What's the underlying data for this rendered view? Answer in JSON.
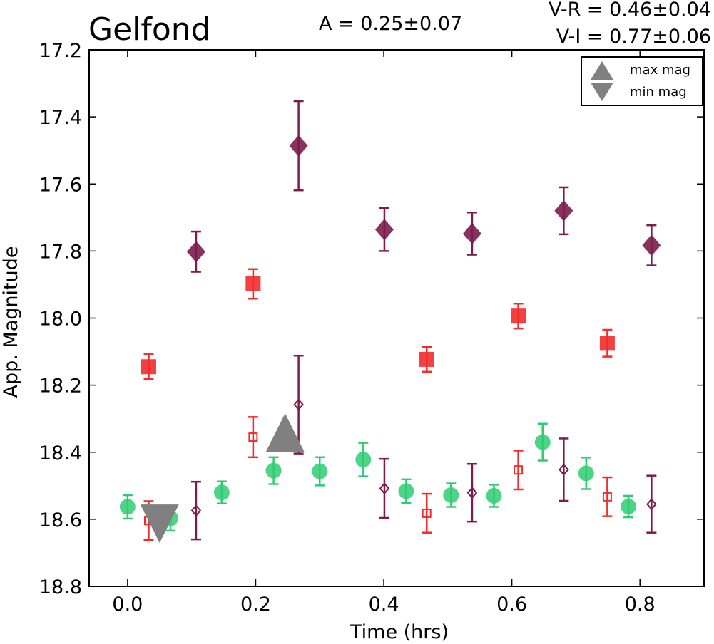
{
  "chart_data": {
    "type": "scatter",
    "title": "Gelfond",
    "annotations": {
      "amplitude": "A  = 0.25±0.07",
      "v_r": "V-R = 0.46±0.04",
      "v_i": "V-I  = 0.77±0.06"
    },
    "xlabel": "Time (hrs)",
    "ylabel": "App. Magnitude",
    "xlim": [
      -0.06,
      0.9
    ],
    "ylim": [
      18.8,
      17.2
    ],
    "y_inverted": true,
    "xticks": [
      "0.0",
      "0.2",
      "0.4",
      "0.6",
      "0.8"
    ],
    "xtick_values": [
      0.0,
      0.2,
      0.4,
      0.6,
      0.8
    ],
    "yticks": [
      "17.2",
      "17.4",
      "17.6",
      "17.8",
      "18.0",
      "18.2",
      "18.4",
      "18.6",
      "18.8"
    ],
    "ytick_values": [
      17.2,
      17.4,
      17.6,
      17.8,
      18.0,
      18.2,
      18.4,
      18.6,
      18.8
    ],
    "legend_position": "top-right",
    "legend": [
      {
        "label": "max mag",
        "marker": "triangle-up"
      },
      {
        "label": "min mag",
        "marker": "triangle-down"
      }
    ],
    "colors": {
      "green": "#2ecc71",
      "red": "#f22b2b",
      "purple": "#7b1c4f",
      "gray": "#808080"
    },
    "series": [
      {
        "marker": "circle",
        "filled": true,
        "color": "#2ecc71",
        "x": [
          0.0,
          0.067,
          0.147,
          0.228,
          0.3,
          0.368,
          0.435,
          0.505,
          0.572,
          0.648,
          0.716,
          0.782
        ],
        "y": [
          18.563,
          18.597,
          18.52,
          18.455,
          18.457,
          18.422,
          18.516,
          18.528,
          18.53,
          18.37,
          18.463,
          18.562
        ],
        "err": [
          0.035,
          0.037,
          0.033,
          0.04,
          0.042,
          0.05,
          0.035,
          0.035,
          0.033,
          0.055,
          0.047,
          0.032
        ]
      },
      {
        "marker": "square",
        "filled": true,
        "color": "#f22b2b",
        "x": [
          0.033,
          0.196,
          0.467,
          0.61,
          0.749
        ],
        "y": [
          18.145,
          17.898,
          18.123,
          17.994,
          18.075
        ],
        "err": [
          0.037,
          0.044,
          0.037,
          0.037,
          0.04
        ]
      },
      {
        "marker": "square",
        "filled": false,
        "color": "#f22b2b",
        "x": [
          0.033,
          0.196,
          0.467,
          0.61,
          0.749
        ],
        "y": [
          18.604,
          18.355,
          18.582,
          18.453,
          18.533
        ],
        "err": [
          0.058,
          0.06,
          0.058,
          0.058,
          0.058
        ]
      },
      {
        "marker": "diamond",
        "filled": true,
        "color": "#7b1c4f",
        "x": [
          0.107,
          0.267,
          0.401,
          0.538,
          0.681,
          0.818
        ],
        "y": [
          17.802,
          17.486,
          17.736,
          17.748,
          17.68,
          17.783
        ],
        "err": [
          0.06,
          0.133,
          0.064,
          0.063,
          0.07,
          0.06
        ]
      },
      {
        "marker": "diamond",
        "filled": false,
        "color": "#7b1c4f",
        "x": [
          0.107,
          0.267,
          0.401,
          0.538,
          0.681,
          0.818
        ],
        "y": [
          18.574,
          18.258,
          18.508,
          18.521,
          18.452,
          18.555
        ],
        "err": [
          0.086,
          0.146,
          0.088,
          0.086,
          0.093,
          0.085
        ]
      },
      {
        "marker": "triangle-up",
        "filled": true,
        "color": "#808080",
        "x": [
          0.246
        ],
        "y": [
          18.365
        ],
        "err": []
      },
      {
        "marker": "triangle-down",
        "filled": true,
        "color": "#808080",
        "x": [
          0.05
        ],
        "y": [
          18.607
        ],
        "err": []
      }
    ]
  }
}
